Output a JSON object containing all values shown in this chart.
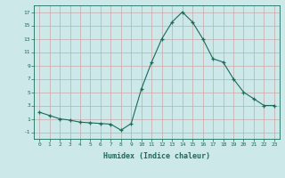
{
  "x": [
    0,
    1,
    2,
    3,
    4,
    5,
    6,
    7,
    8,
    9,
    10,
    11,
    12,
    13,
    14,
    15,
    16,
    17,
    18,
    19,
    20,
    21,
    22,
    23
  ],
  "y": [
    2,
    1.5,
    1,
    0.8,
    0.5,
    0.4,
    0.3,
    0.2,
    -0.7,
    0.3,
    5.5,
    9.5,
    13,
    15.5,
    17,
    15.5,
    13,
    10,
    9.5,
    7,
    5,
    4,
    3,
    3
  ],
  "line_color": "#1a6b5a",
  "marker": "+",
  "bg_color": "#cce8e8",
  "grid_color": "#b8d4d4",
  "xlabel": "Humidex (Indice chaleur)",
  "ylim": [
    -2,
    18
  ],
  "xlim": [
    -0.5,
    23.5
  ],
  "yticks": [
    -1,
    1,
    3,
    5,
    7,
    9,
    11,
    13,
    15,
    17
  ],
  "xticks": [
    0,
    1,
    2,
    3,
    4,
    5,
    6,
    7,
    8,
    9,
    10,
    11,
    12,
    13,
    14,
    15,
    16,
    17,
    18,
    19,
    20,
    21,
    22,
    23
  ]
}
